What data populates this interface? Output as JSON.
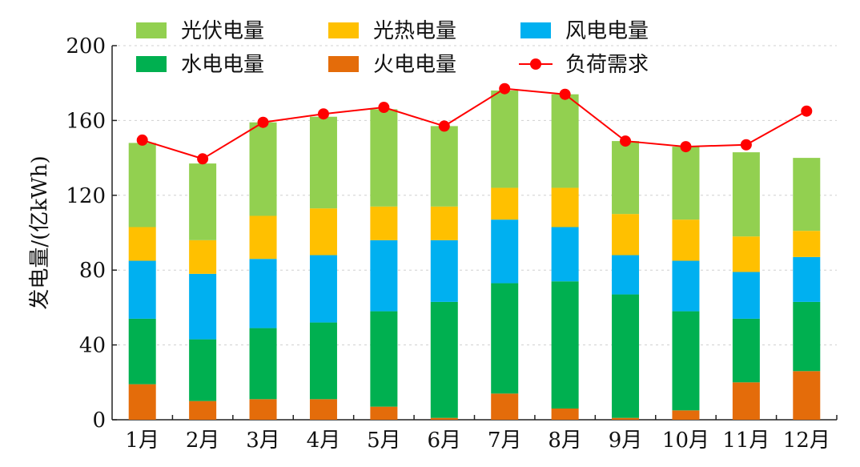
{
  "chart_data": {
    "type": "bar",
    "stacked": true,
    "title": "",
    "xlabel": "",
    "ylabel": "发电量/(亿kWh)",
    "ylim": [
      0,
      200
    ],
    "yticks": [
      0,
      40,
      80,
      120,
      160,
      200
    ],
    "grid": true,
    "legend_position": "top",
    "categories": [
      "1月",
      "2月",
      "3月",
      "4月",
      "5月",
      "6月",
      "7月",
      "8月",
      "9月",
      "10月",
      "11月",
      "12月"
    ],
    "series": [
      {
        "name": "火电电量",
        "type": "bar",
        "color": "#e46c0a",
        "values": [
          19,
          10,
          11,
          11,
          7,
          1,
          14,
          6,
          1,
          5,
          20,
          26
        ]
      },
      {
        "name": "水电电量",
        "type": "bar",
        "color": "#00b050",
        "values": [
          35,
          33,
          38,
          41,
          51,
          62,
          59,
          68,
          66,
          53,
          34,
          37
        ]
      },
      {
        "name": "风电电量",
        "type": "bar",
        "color": "#00b0f0",
        "values": [
          31,
          35,
          37,
          36,
          38,
          33,
          34,
          29,
          21,
          27,
          25,
          24
        ]
      },
      {
        "name": "光热电量",
        "type": "bar",
        "color": "#ffc000",
        "values": [
          18,
          18,
          23,
          25,
          18,
          18,
          17,
          21,
          22,
          22,
          19,
          14
        ]
      },
      {
        "name": "光伏电量",
        "type": "bar",
        "color": "#92d050",
        "values": [
          45,
          41,
          50,
          49,
          52,
          43,
          52,
          50,
          39,
          39,
          45,
          39
        ]
      },
      {
        "name": "负荷需求",
        "type": "line",
        "color": "#ff0000",
        "values": [
          149.5,
          139.5,
          159,
          163.5,
          167,
          157,
          177,
          174,
          149,
          146,
          147,
          165
        ]
      }
    ],
    "legend_order": [
      "光伏电量",
      "光热电量",
      "风电电量",
      "水电电量",
      "火电电量",
      "负荷需求"
    ]
  }
}
